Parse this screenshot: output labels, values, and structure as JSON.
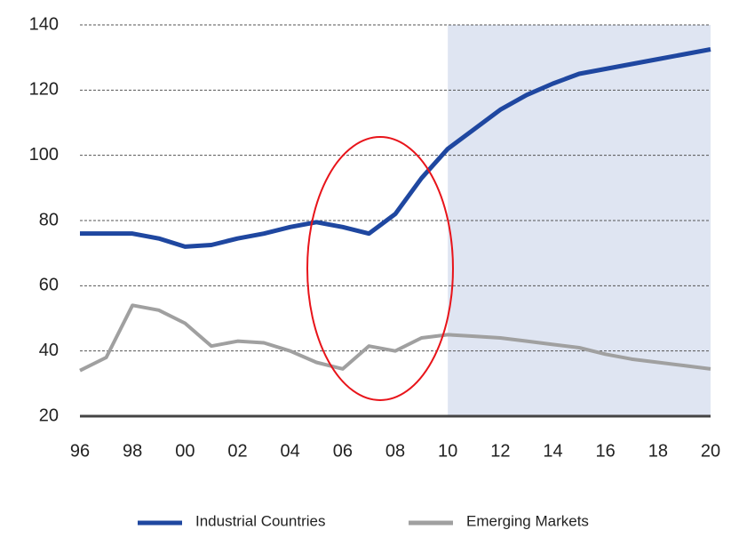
{
  "chart_data": {
    "type": "line",
    "categories": [
      "96",
      null,
      "98",
      null,
      "00",
      null,
      "02",
      null,
      "04",
      null,
      "06",
      null,
      "08",
      null,
      "10",
      null,
      "12",
      null,
      "14",
      null,
      "16",
      null,
      "18",
      null,
      "20"
    ],
    "series": [
      {
        "name": "Industrial Countries",
        "color": "#1f47a0",
        "values": [
          76,
          76,
          76,
          74.5,
          72,
          72.5,
          74.5,
          76,
          78,
          79.5,
          78,
          76,
          82,
          93,
          102,
          108,
          114,
          118.5,
          122,
          125,
          126.5,
          128,
          129.5,
          131,
          132.5
        ]
      },
      {
        "name": "Emerging Markets",
        "color": "#a0a0a0",
        "values": [
          34,
          38,
          54,
          52.5,
          48.5,
          41.5,
          43,
          42.5,
          40,
          36.5,
          34.5,
          41.5,
          40,
          44,
          45,
          44.5,
          44,
          43,
          42,
          41,
          39,
          37.5,
          36.5,
          35.5,
          34.5
        ]
      }
    ],
    "ylim": [
      20,
      140
    ],
    "yticks": [
      20,
      40,
      60,
      80,
      100,
      120,
      140
    ],
    "grid": true,
    "shaded_from": "10",
    "legend": "bottom"
  }
}
